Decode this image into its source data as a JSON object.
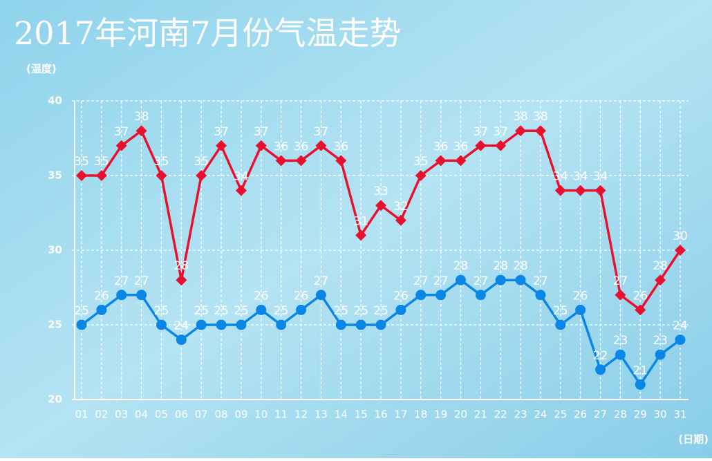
{
  "chart_data": {
    "type": "line",
    "title": "2017年河南7月份气温走势",
    "y_label": "(温度)",
    "x_label": "(日期)",
    "categories": [
      "01",
      "02",
      "03",
      "04",
      "05",
      "06",
      "07",
      "08",
      "09",
      "10",
      "11",
      "12",
      "13",
      "14",
      "15",
      "16",
      "17",
      "18",
      "19",
      "20",
      "21",
      "22",
      "23",
      "24",
      "25",
      "26",
      "27",
      "28",
      "29",
      "30",
      "31"
    ],
    "series": [
      {
        "color": "#e8112d",
        "marker": "diamond",
        "values": [
          35,
          35,
          37,
          38,
          35,
          28,
          35,
          37,
          34,
          37,
          36,
          36,
          37,
          36,
          31,
          33,
          32,
          35,
          36,
          36,
          37,
          37,
          38,
          38,
          34,
          34,
          34,
          27,
          26,
          28,
          30
        ]
      },
      {
        "color": "#0a86e6",
        "marker": "circle",
        "values": [
          25,
          26,
          27,
          27,
          25,
          24,
          25,
          25,
          25,
          26,
          25,
          26,
          27,
          25,
          25,
          25,
          26,
          27,
          27,
          28,
          27,
          28,
          28,
          27,
          25,
          26,
          22,
          23,
          21,
          23,
          24
        ]
      }
    ],
    "ylim": [
      20,
      40
    ],
    "yticks": [
      20,
      25,
      30,
      35,
      40
    ],
    "grid": true
  }
}
